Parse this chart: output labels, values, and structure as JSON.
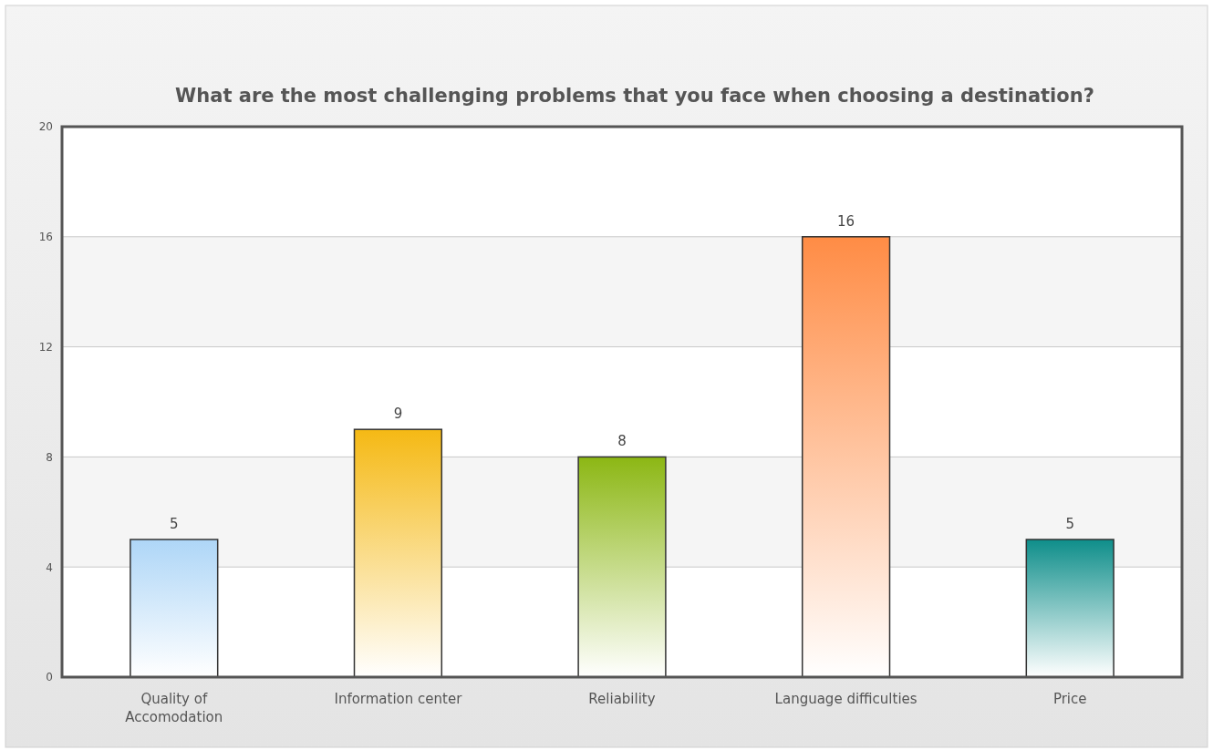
{
  "chart_data": {
    "type": "bar",
    "title": "What are the most challenging problems that you face when choosing a destination?",
    "categories": [
      "Quality of Accomodation",
      "Information center",
      "Reliability",
      "Language difficulties",
      "Price"
    ],
    "values": [
      5,
      9,
      8,
      16,
      5
    ],
    "colors": [
      "#aed6f7",
      "#f5b914",
      "#8cb714",
      "#ff8c45",
      "#0e8e8a"
    ],
    "ylim": [
      0,
      20
    ],
    "yticks": [
      0,
      4,
      8,
      12,
      16,
      20
    ],
    "grid": "y",
    "data_labels": true
  }
}
